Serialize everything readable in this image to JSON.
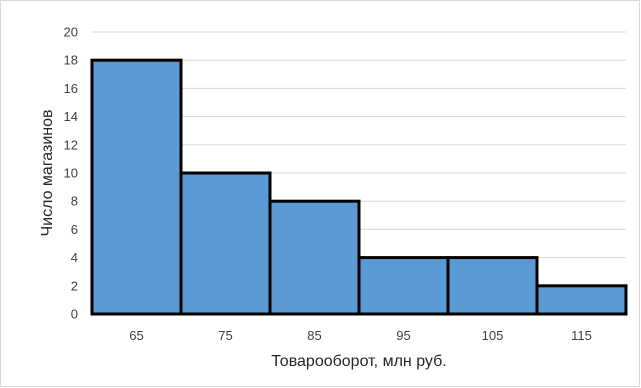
{
  "chart_data": {
    "type": "bar",
    "categories": [
      "65",
      "75",
      "85",
      "95",
      "105",
      "115"
    ],
    "values": [
      18,
      10,
      8,
      4,
      4,
      2
    ],
    "xlabel": "Товарооборот, млн руб.",
    "ylabel": "Число магазинов",
    "ylim": [
      0,
      20
    ],
    "yticks": [
      0,
      2,
      4,
      6,
      8,
      10,
      12,
      14,
      16,
      18,
      20
    ],
    "grid": true,
    "legend": "none",
    "bar_color": "#5b9bd5",
    "bar_edge_color": "#000000",
    "grid_color": "#d9d9d9"
  }
}
